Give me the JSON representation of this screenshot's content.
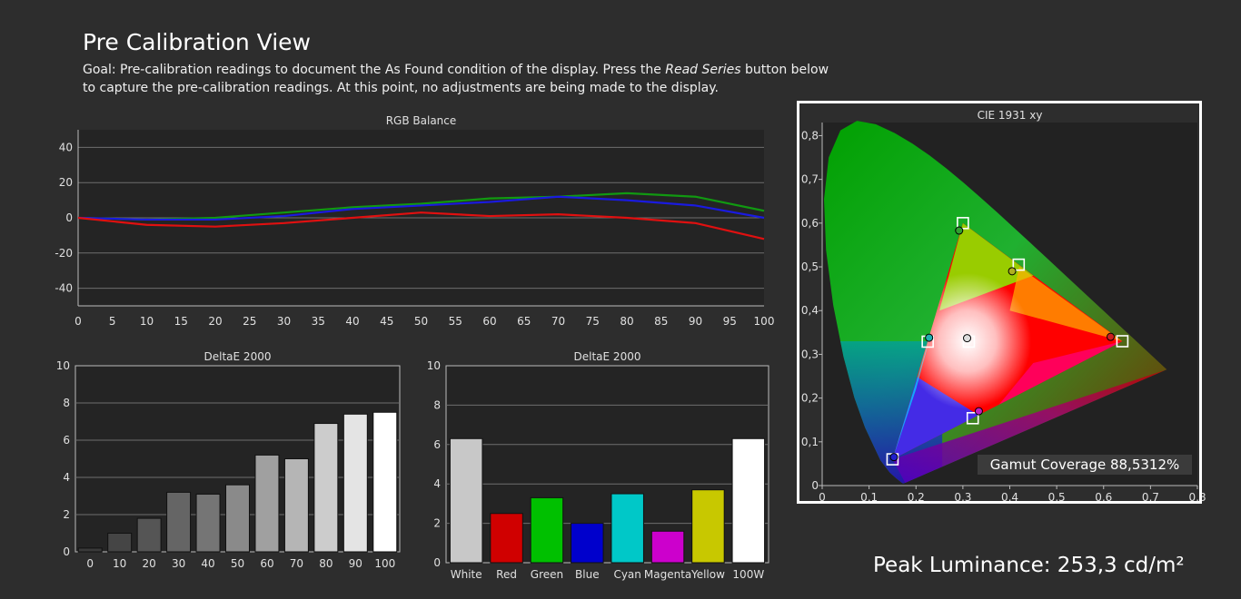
{
  "page": {
    "title": "Pre Calibration View",
    "goal_prefix": "Goal: Pre-calibration readings to document the As Found condition of the display. Press the ",
    "goal_emph": "Read Series",
    "goal_suffix": " button below to capture the pre-calibration readings. At this point, no adjustments are being made to the display.",
    "peak_luminance": "Peak Luminance: 253,3 cd/m²",
    "gamut_coverage": "Gamut Coverage 88,5312%"
  },
  "colors": {
    "background": "#2d2d2d",
    "plot_bg": "#242424",
    "grid": "#6e6e6e",
    "red": "#e01010",
    "green": "#119911",
    "blue": "#1a1ae0"
  },
  "chart_data": [
    {
      "type": "line",
      "title": "RGB Balance",
      "x": [
        0,
        10,
        20,
        30,
        40,
        50,
        60,
        70,
        80,
        90,
        100
      ],
      "xticks": [
        "0",
        "5",
        "10",
        "15",
        "20",
        "25",
        "30",
        "35",
        "40",
        "45",
        "50",
        "55",
        "60",
        "65",
        "70",
        "75",
        "80",
        "85",
        "90",
        "95",
        "100"
      ],
      "yticks": [
        "40",
        "20",
        "0",
        "-20",
        "-40"
      ],
      "ylim": [
        -50,
        50
      ],
      "xlim": [
        0,
        100
      ],
      "series": [
        {
          "color": "#119911",
          "values": [
            0,
            -1,
            0,
            3,
            6,
            8,
            11,
            12,
            14,
            12,
            4
          ]
        },
        {
          "color": "#1a1ae0",
          "values": [
            0,
            -1,
            -1,
            1,
            5,
            7,
            9,
            12,
            10,
            7,
            0
          ]
        },
        {
          "color": "#e01010",
          "values": [
            0,
            -4,
            -5,
            -3,
            0,
            3,
            1,
            2,
            0,
            -3,
            -12
          ]
        }
      ],
      "grid": true
    },
    {
      "type": "bar",
      "title": "DeltaE 2000",
      "categories": [
        "0",
        "10",
        "20",
        "30",
        "40",
        "50",
        "60",
        "70",
        "80",
        "90",
        "100"
      ],
      "values": [
        0.2,
        1.0,
        1.8,
        3.2,
        3.1,
        3.6,
        5.2,
        5.0,
        6.9,
        7.4,
        7.5
      ],
      "ylim": [
        0,
        10
      ],
      "yticks": [
        "10",
        "8",
        "6",
        "4",
        "2",
        "0"
      ],
      "bar_colors": [
        "#3a3a3a",
        "#454545",
        "#555555",
        "#656565",
        "#757575",
        "#8a8a8a",
        "#a0a0a0",
        "#b5b5b5",
        "#cccccc",
        "#e4e4e4",
        "#ffffff"
      ]
    },
    {
      "type": "bar",
      "title": "DeltaE 2000",
      "categories": [
        "White",
        "Red",
        "Green",
        "Blue",
        "Cyan",
        "Magenta",
        "Yellow",
        "100W"
      ],
      "values": [
        6.3,
        2.5,
        3.3,
        2.0,
        3.5,
        1.6,
        3.7,
        6.3
      ],
      "ylim": [
        0,
        10
      ],
      "yticks": [
        "10",
        "8",
        "6",
        "4",
        "2",
        "0"
      ],
      "bar_colors": [
        "#c8c8c8",
        "#d00000",
        "#00c000",
        "#0000cc",
        "#00c8c8",
        "#cc00cc",
        "#c8c800",
        "#ffffff"
      ]
    },
    {
      "type": "scatter",
      "title": "CIE 1931 xy",
      "xticks": [
        "0",
        "0,1",
        "0,2",
        "0,3",
        "0,4",
        "0,5",
        "0,6",
        "0,7",
        "0,8"
      ],
      "yticks": [
        "0,8",
        "0,7",
        "0,6",
        "0,5",
        "0,4",
        "0,3",
        "0,2",
        "0,1",
        "0"
      ],
      "xlim": [
        0,
        0.8
      ],
      "ylim": [
        0,
        0.83
      ],
      "targets": [
        {
          "name": "Red",
          "x": 0.64,
          "y": 0.33
        },
        {
          "name": "Green",
          "x": 0.3,
          "y": 0.6
        },
        {
          "name": "Blue",
          "x": 0.15,
          "y": 0.06
        },
        {
          "name": "White",
          "x": 0.3127,
          "y": 0.329
        },
        {
          "name": "Yellow",
          "x": 0.419,
          "y": 0.505
        },
        {
          "name": "Cyan",
          "x": 0.225,
          "y": 0.329
        },
        {
          "name": "Magenta",
          "x": 0.321,
          "y": 0.154
        }
      ],
      "measured": [
        {
          "name": "Red",
          "x": 0.615,
          "y": 0.34,
          "color": "#cc2020"
        },
        {
          "name": "Green",
          "x": 0.292,
          "y": 0.583,
          "color": "#30a030"
        },
        {
          "name": "Blue",
          "x": 0.153,
          "y": 0.065,
          "color": "#2020cc"
        },
        {
          "name": "White",
          "x": 0.309,
          "y": 0.337,
          "color": "#dddddd"
        },
        {
          "name": "Yellow",
          "x": 0.405,
          "y": 0.49,
          "color": "#b0b020"
        },
        {
          "name": "Cyan",
          "x": 0.228,
          "y": 0.338,
          "color": "#20b0b0"
        },
        {
          "name": "Magenta",
          "x": 0.334,
          "y": 0.17,
          "color": "#c020c0"
        }
      ]
    }
  ]
}
